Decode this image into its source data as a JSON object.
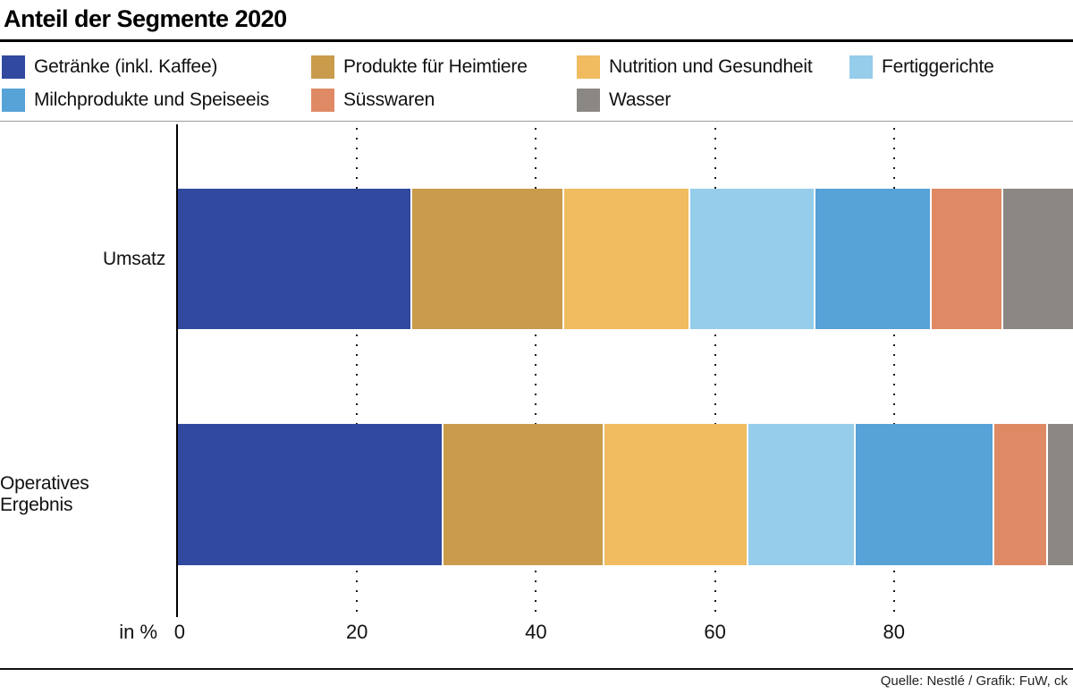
{
  "header": {
    "title": "Anteil der Segmente 2020"
  },
  "axis": {
    "unit_label": "in %"
  },
  "footer": {
    "source": "Quelle: Nestlé / Grafik: FuW, ck"
  },
  "chart_data": {
    "type": "bar",
    "orientation": "horizontal",
    "stacked": true,
    "unit": "%",
    "title": "Anteil der Segmente 2020",
    "categories": [
      "Umsatz",
      "Operatives Ergebnis"
    ],
    "series": [
      {
        "name": "Getränke (inkl. Kaffee)",
        "color": "#31499e",
        "values": [
          26,
          29.5
        ]
      },
      {
        "name": "Produkte für Heimtiere",
        "color": "#c99b4b",
        "values": [
          17,
          18
        ]
      },
      {
        "name": "Nutrition und Gesundheit",
        "color": "#f0bc5f",
        "values": [
          14,
          16
        ]
      },
      {
        "name": "Fertiggerichte",
        "color": "#96cdeb",
        "values": [
          14,
          12
        ]
      },
      {
        "name": "Milchprodukte und Speiseeis",
        "color": "#57a2d7",
        "values": [
          13,
          15.5
        ]
      },
      {
        "name": "Süsswaren",
        "color": "#df8a65",
        "values": [
          8,
          6
        ]
      },
      {
        "name": "Wasser",
        "color": "#8b8884",
        "values": [
          8,
          3
        ]
      }
    ],
    "xlabel": "in %",
    "x_ticks": [
      0,
      20,
      40,
      60,
      80
    ],
    "xlim": [
      0,
      100
    ],
    "legend_position": "top",
    "grid": "dotted vertical gridlines at ticks"
  }
}
